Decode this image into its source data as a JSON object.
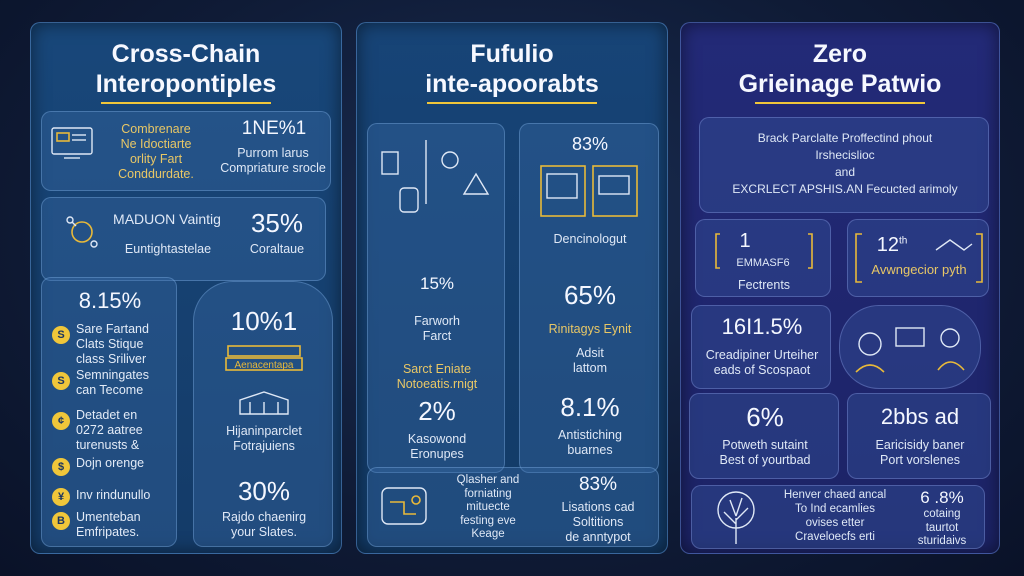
{
  "panel1": {
    "title_line1": "Cross-Chain",
    "title_line2": "Interopontiples",
    "card1": {
      "left_text": "Combrenare\nNe Idoctiarte\norlity Fart\nConddurdate.",
      "right_heading": "1NE%1",
      "right_text": "Purrom larus\nCompriature srocle"
    },
    "card2": {
      "scribble": "MADUON Vaintig",
      "caption": "Euntightastelae",
      "value": "35%",
      "value_label": "Coraltaue"
    },
    "card3": {
      "value": "8.15%",
      "bullets": [
        {
          "icon": "S",
          "text": "Sare Fartand\nClats Stique\nclass Sriliver"
        },
        {
          "icon": "S",
          "text": "Semningates\ncan Tecome"
        },
        {
          "icon": "¢",
          "text": "Detadet en\n0272 aatree\nturenusts &"
        },
        {
          "icon": "$",
          "text": "Dojn orenge"
        },
        {
          "icon": "¥",
          "text": "Inv rindunullo"
        },
        {
          "icon": "B",
          "text": "Umenteban\nEmfripates."
        }
      ]
    },
    "card4": {
      "value": "10%1",
      "banner": "Aenacentapa",
      "text1": "Hijaninparclet\nFotrajuiens",
      "value2": "30%",
      "text2": "Rajdo chaenirg\nyour Slates."
    }
  },
  "panel2": {
    "title_line1": "Fufulio",
    "title_line2": "inte-apoorabts",
    "left_card": {
      "value1": "15%",
      "text1": "Farworh\nFarct",
      "text2": "Sarct Eniate\nNotoeatis.rnigt",
      "value2": "2%",
      "text3": "Kasowond\nEronupes"
    },
    "right_card": {
      "value0": "83%",
      "caption0": "Dencinologut",
      "value1": "65%",
      "text1": "Rinitagys Eynit",
      "text2": "Adsit\nlattom",
      "value2": "8.1%",
      "text3": "Antistiching\nbuarnes"
    },
    "bottom_card": {
      "text1": "Qlasher and\nforniating\nmituecte\nfesting eve\nKeage",
      "value": "83%",
      "text2": "Lisations cad\nSoltitions\nde anntypot"
    }
  },
  "panel3": {
    "title_line1": "Zero",
    "title_line2": "Grieinage Patwio",
    "card1": {
      "text": "Brack Parclalte Proffectind phout\nIrshecislioc\nand\nEXCRLECT APSHIS.AN Fecucted arimoly"
    },
    "card2": {
      "value": "1",
      "label": "EMMASF6",
      "text": "Fectrents"
    },
    "card3": {
      "value": "12",
      "sup": "th",
      "text": "Avwngecior pyth"
    },
    "card4": {
      "value": "16I1.5%",
      "text": "Creadipiner Urteiher\neads of Scospaot"
    },
    "card6": {
      "value": "6%",
      "text": "Potweth sutaint\nBest of yourtbad"
    },
    "card7": {
      "value": "2bbs ad",
      "text": "Earicisidy baner\nPort vorslenes"
    },
    "card8": {
      "text1": "Henver chaed ancal\nTo Ind ecamlies\novises etter\nCraveloecfs erti",
      "value": "6 .8%",
      "text2": "cotaing\ntaurtot\nsturidaivs"
    }
  },
  "colors": {
    "accent": "#f0c63a",
    "panel_blue": "#18477a",
    "panel_indigo": "#232a78"
  }
}
